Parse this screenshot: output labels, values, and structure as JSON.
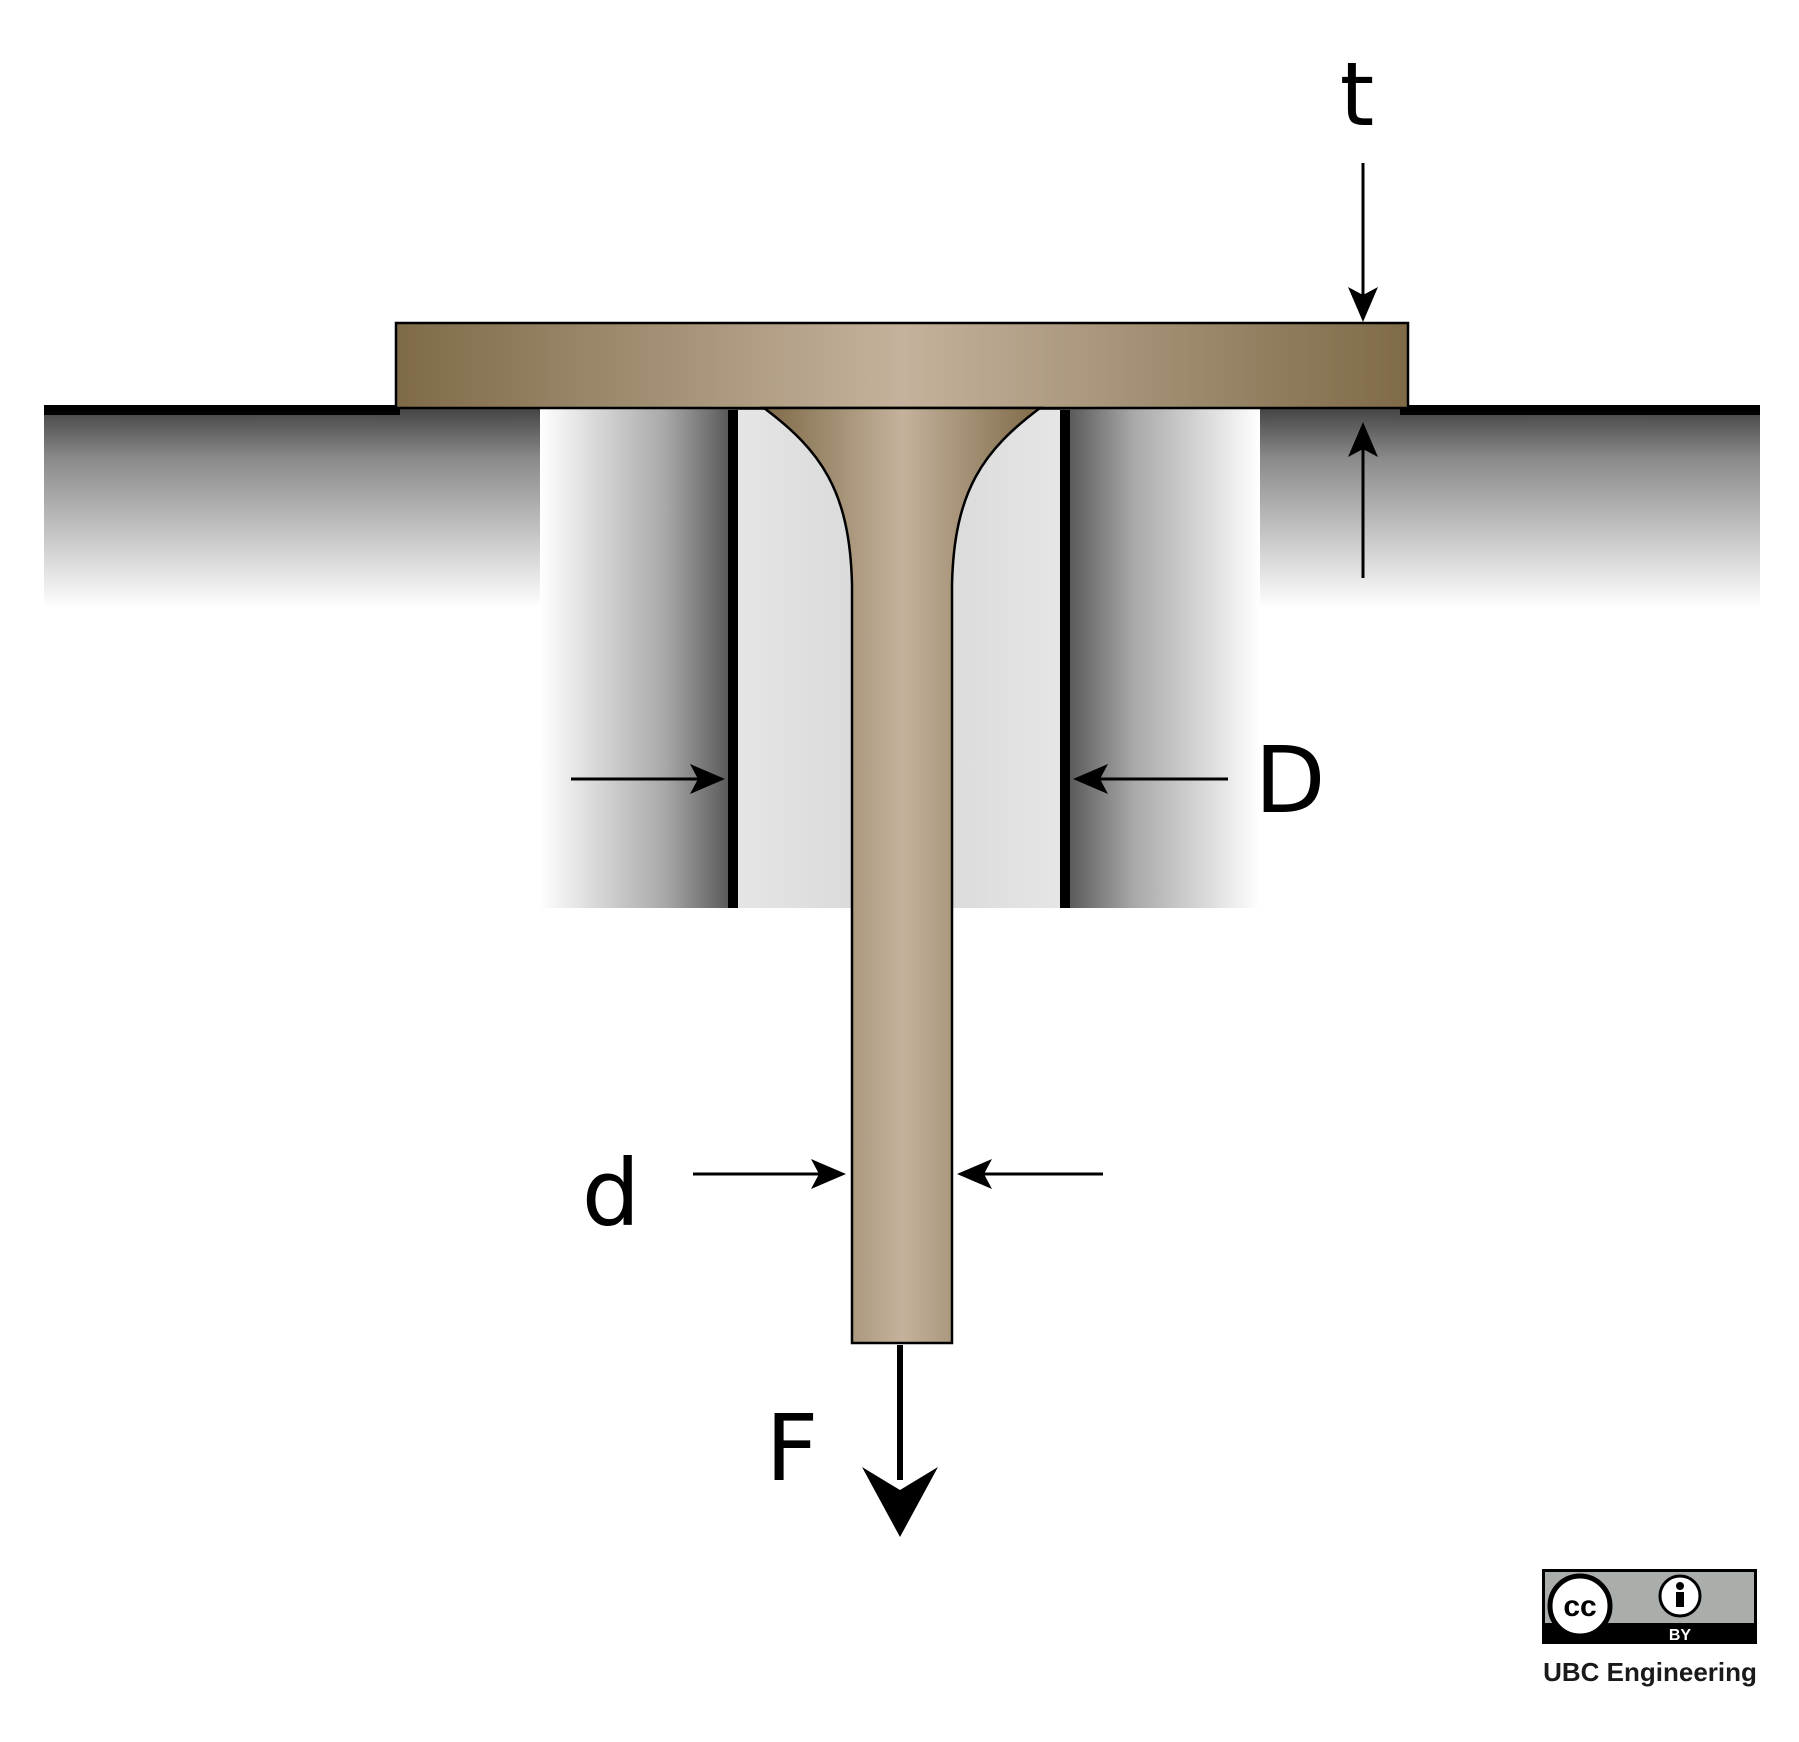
{
  "labels": {
    "thickness": "t",
    "hole_diameter": "D",
    "shaft_diameter": "d",
    "force": "F"
  },
  "license": {
    "cc_text": "cc",
    "by_text": "BY",
    "credit": "UBC Engineering"
  },
  "colors": {
    "metal_dark": "#7f6a48",
    "metal_light": "#c4b29c",
    "outline": "#000000",
    "background": "#ffffff"
  }
}
